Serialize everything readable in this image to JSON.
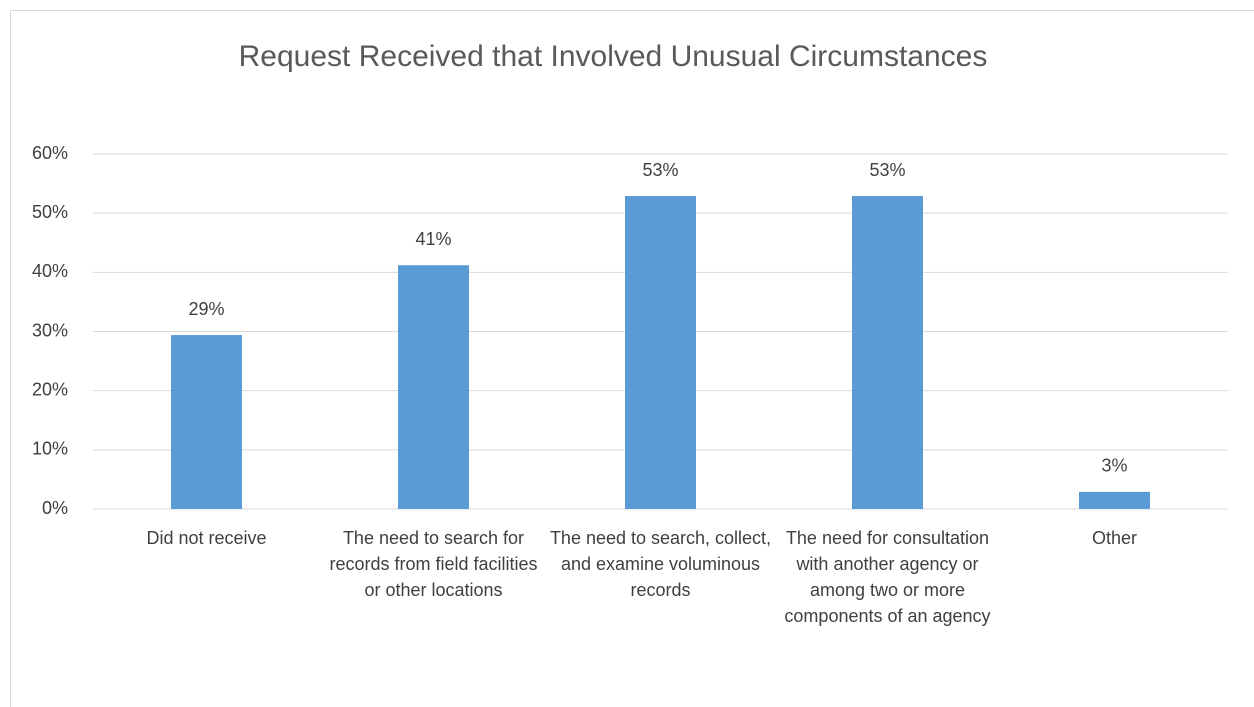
{
  "chart_data": {
    "type": "bar",
    "title": "Request Received that Involved Unusual Circumstances",
    "categories": [
      "Did not receive",
      "The need to search for records from field facilities or other locations",
      "The need to search, collect, and examine voluminous records",
      "The need for consultation with another agency or among two or more components of an agency",
      "Other"
    ],
    "values": [
      29.4,
      41.2,
      52.9,
      52.9,
      2.9
    ],
    "value_labels": [
      "29%",
      "41%",
      "53%",
      "53%",
      "3%"
    ],
    "color": "#5b9bd5",
    "ylim": [
      0,
      60
    ],
    "yticks": [
      {
        "value": 0,
        "label": "0%"
      },
      {
        "value": 10,
        "label": "10%"
      },
      {
        "value": 20,
        "label": "20%"
      },
      {
        "value": 30,
        "label": "30%"
      },
      {
        "value": 40,
        "label": "40%"
      },
      {
        "value": 50,
        "label": "50%"
      },
      {
        "value": 60,
        "label": "60%"
      }
    ],
    "grid": true
  }
}
